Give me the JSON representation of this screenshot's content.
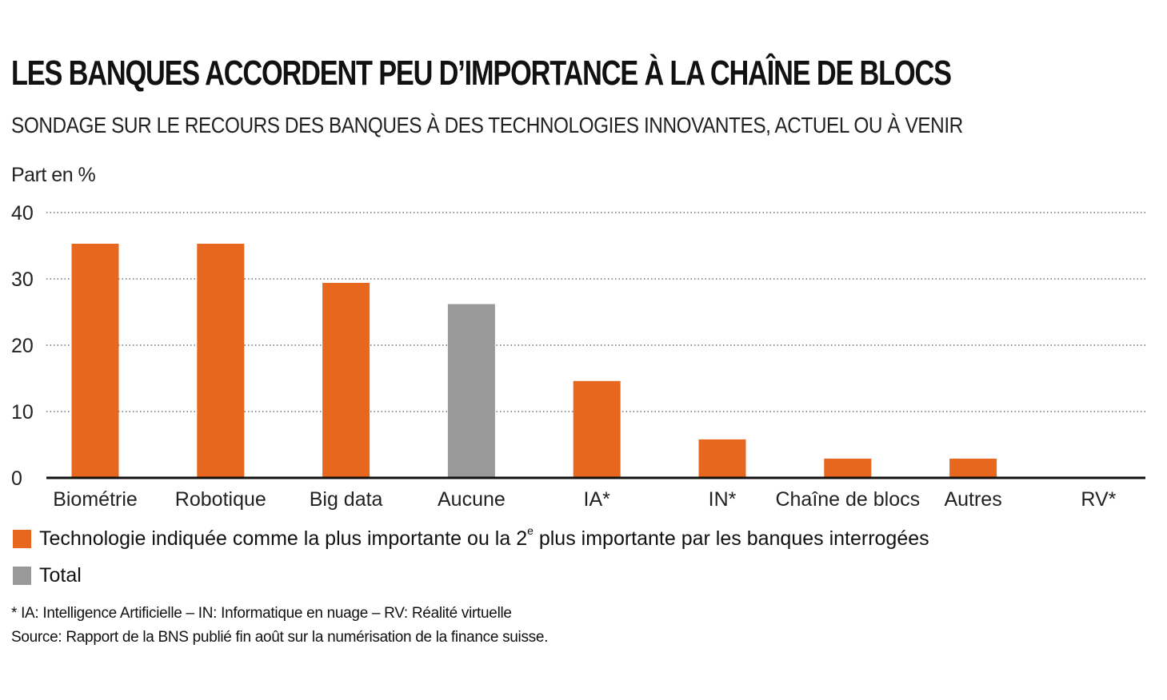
{
  "title": "LES BANQUES ACCORDENT PEU D’IMPORTANCE À LA CHAÎNE DE BLOCS",
  "subtitle": "SONDAGE SUR LE RECOURS DES BANQUES À DES TECHNOLOGIES INNOVANTES, ACTUEL OU À VENIR",
  "legend": {
    "item1_pre": "Technologie indiquée comme la plus importante ou la 2",
    "item1_sup": "e",
    "item1_post": " plus importante par les banques interrogées",
    "item2": "Total"
  },
  "footnotes": {
    "line1": "* IA: Intelligence Artificielle – IN: Informatique en nuage – RV: Réalité virtuelle",
    "line2": "Source: Rapport de la BNS publié fin août sur la numérisation de la finance suisse."
  },
  "colors": {
    "primary": "#e8671f",
    "total": "#999999"
  },
  "chart_data": {
    "type": "bar",
    "ylabel": "Part en %",
    "ylim": [
      0,
      40
    ],
    "yticks": [
      0,
      10,
      20,
      30,
      40
    ],
    "grid": true,
    "categories": [
      "Biométrie",
      "Robotique",
      "Big data",
      "Aucune",
      "IA*",
      "IN*",
      "Chaîne de blocs",
      "Autres",
      "RV*"
    ],
    "values": [
      35.3,
      35.3,
      29.4,
      26.2,
      14.6,
      5.8,
      2.9,
      2.9,
      0
    ],
    "bar_groups": [
      "Technologie",
      "Technologie",
      "Technologie",
      "Total",
      "Technologie",
      "Technologie",
      "Technologie",
      "Technologie",
      "Technologie"
    ]
  }
}
